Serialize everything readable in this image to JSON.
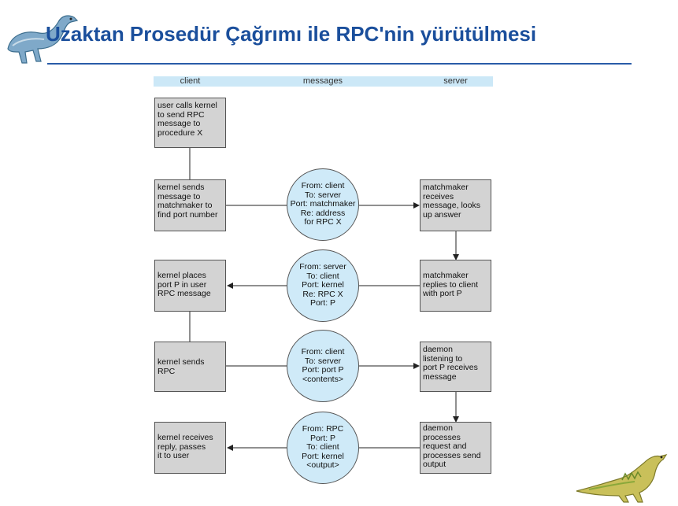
{
  "title": "Uzaktan Prosedür Çağrımı ile RPC'nin yürütülmesi",
  "columns": {
    "client": "client",
    "messages": "messages",
    "server": "server"
  },
  "client_boxes": [
    {
      "lines": [
        "user calls kernel",
        "to send RPC",
        "message to",
        "procedure X"
      ]
    },
    {
      "lines": [
        "kernel sends",
        "message to",
        "matchmaker to",
        "find port number"
      ]
    },
    {
      "lines": [
        "kernel places",
        "port P in user",
        "RPC message"
      ]
    },
    {
      "lines": [
        "kernel sends",
        "RPC"
      ]
    },
    {
      "lines": [
        "kernel receives",
        "reply, passes",
        "it to user"
      ]
    }
  ],
  "messages": [
    {
      "lines": [
        "From: client",
        "To: server",
        "Port: matchmaker",
        "Re: address",
        "for RPC X"
      ]
    },
    {
      "lines": [
        "From: server",
        "To: client",
        "Port: kernel",
        "Re: RPC X",
        "Port: P"
      ]
    },
    {
      "lines": [
        "From: client",
        "To: server",
        "Port: port P",
        "<contents>"
      ]
    },
    {
      "lines": [
        "From: RPC",
        "Port: P",
        "To: client",
        "Port: kernel",
        "<output>"
      ]
    }
  ],
  "server_boxes": [
    {
      "lines": [
        "matchmaker",
        "receives",
        "message, looks",
        "up answer"
      ]
    },
    {
      "lines": [
        "matchmaker",
        "replies to client",
        "with port P"
      ]
    },
    {
      "lines": [
        "daemon",
        "listening to",
        "port P receives",
        "message"
      ]
    },
    {
      "lines": [
        "daemon",
        "processes",
        "request and",
        "processes send",
        "output"
      ]
    }
  ],
  "colors": {
    "title": "#1b4f9c",
    "header_bar": "#cce8f7",
    "bubble": "#cfeaf8",
    "box": "#d3d3d3"
  },
  "icons": [
    "dinosaur-logo-icon",
    "dinosaur-corner-icon"
  ]
}
